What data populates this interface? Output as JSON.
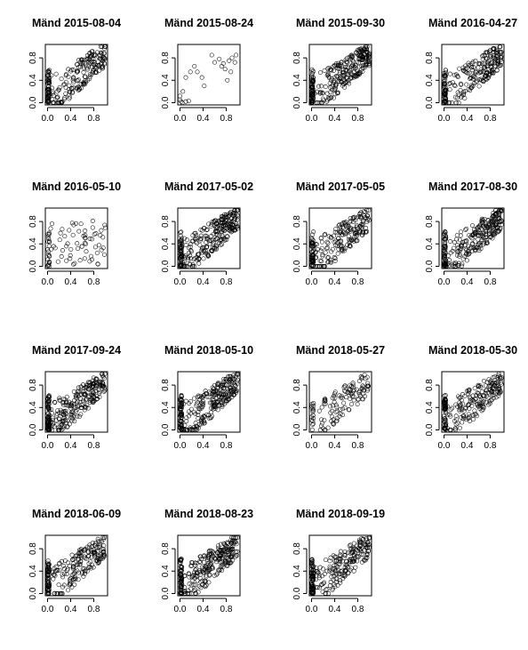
{
  "figure": {
    "ncols": 4,
    "tick_values": [
      0.0,
      0.4,
      0.8
    ],
    "tick_labels": [
      "0.0",
      "0.4",
      "0.8"
    ],
    "marker": "open-circle",
    "colors": {
      "points": "#000000",
      "axes": "#000000",
      "background": "#ffffff"
    }
  },
  "chart_data": [
    {
      "type": "scatter",
      "title": "Mänd 2015-08-04",
      "xlim": [
        0,
        1
      ],
      "ylim": [
        0,
        1
      ],
      "grid": false,
      "points": {
        "n": 240,
        "pattern": "diagonal",
        "density": "high",
        "zero_cluster": "strong",
        "gap": false
      }
    },
    {
      "type": "scatter",
      "title": "Mänd 2015-08-24",
      "xlim": [
        0,
        1
      ],
      "ylim": [
        0,
        1
      ],
      "grid": false,
      "points": [
        [
          0.0,
          0.05
        ],
        [
          0.02,
          0.02
        ],
        [
          0.04,
          0.0
        ],
        [
          0.0,
          0.12
        ],
        [
          0.05,
          0.2
        ],
        [
          0.1,
          0.02
        ],
        [
          0.15,
          0.03
        ],
        [
          0.1,
          0.45
        ],
        [
          0.18,
          0.55
        ],
        [
          0.25,
          0.65
        ],
        [
          0.3,
          0.55
        ],
        [
          0.38,
          0.45
        ],
        [
          0.42,
          0.3
        ],
        [
          0.55,
          0.85
        ],
        [
          0.6,
          0.72
        ],
        [
          0.68,
          0.78
        ],
        [
          0.72,
          0.65
        ],
        [
          0.75,
          0.7
        ],
        [
          0.78,
          0.6
        ],
        [
          0.82,
          0.4
        ],
        [
          0.85,
          0.75
        ],
        [
          0.88,
          0.55
        ],
        [
          0.9,
          0.8
        ],
        [
          0.95,
          0.72
        ],
        [
          0.97,
          0.85
        ]
      ]
    },
    {
      "type": "scatter",
      "title": "Mänd 2015-09-30",
      "xlim": [
        0,
        1
      ],
      "ylim": [
        0,
        1
      ],
      "grid": false,
      "points": {
        "n": 300,
        "pattern": "diagonal",
        "density": "high",
        "zero_cluster": "strong",
        "gap": false
      }
    },
    {
      "type": "scatter",
      "title": "Mänd 2016-04-27",
      "xlim": [
        0,
        1
      ],
      "ylim": [
        0,
        1
      ],
      "grid": false,
      "points": {
        "n": 240,
        "pattern": "diagonal",
        "density": "medium",
        "zero_cluster": "strong",
        "gap": false
      }
    },
    {
      "type": "scatter",
      "title": "Mänd 2016-05-10",
      "xlim": [
        0,
        1
      ],
      "ylim": [
        0,
        1
      ],
      "grid": false,
      "points": {
        "n": 85,
        "pattern": "scattered",
        "density": "low",
        "zero_cluster": "strong",
        "gap": false
      }
    },
    {
      "type": "scatter",
      "title": "Mänd 2017-05-02",
      "xlim": [
        0,
        1
      ],
      "ylim": [
        0,
        1
      ],
      "grid": false,
      "points": {
        "n": 300,
        "pattern": "diagonal",
        "density": "high",
        "zero_cluster": "strong",
        "gap": false
      }
    },
    {
      "type": "scatter",
      "title": "Mänd 2017-05-05",
      "xlim": [
        0,
        1
      ],
      "ylim": [
        0,
        1
      ],
      "grid": false,
      "points": {
        "n": 240,
        "pattern": "diagonal",
        "density": "medium",
        "zero_cluster": "strong",
        "gap": false
      }
    },
    {
      "type": "scatter",
      "title": "Mänd 2017-08-30",
      "xlim": [
        0,
        1
      ],
      "ylim": [
        0,
        1
      ],
      "grid": false,
      "points": {
        "n": 280,
        "pattern": "diagonal",
        "density": "high",
        "zero_cluster": "strong",
        "gap": false
      }
    },
    {
      "type": "scatter",
      "title": "Mänd 2017-09-24",
      "xlim": [
        0,
        1
      ],
      "ylim": [
        0,
        1
      ],
      "grid": false,
      "points": {
        "n": 300,
        "pattern": "diagonal",
        "density": "high",
        "zero_cluster": "strong",
        "gap": false
      }
    },
    {
      "type": "scatter",
      "title": "Mänd 2018-05-10",
      "xlim": [
        0,
        1
      ],
      "ylim": [
        0,
        1
      ],
      "grid": false,
      "points": {
        "n": 300,
        "pattern": "diagonal",
        "density": "high",
        "zero_cluster": "strong",
        "gap": false
      }
    },
    {
      "type": "scatter",
      "title": "Mänd 2018-05-27",
      "xlim": [
        0,
        1
      ],
      "ylim": [
        0,
        1
      ],
      "grid": false,
      "points": {
        "n": 130,
        "pattern": "diagonal",
        "density": "low",
        "zero_cluster": "medium",
        "gap": true
      }
    },
    {
      "type": "scatter",
      "title": "Mänd 2018-05-30",
      "xlim": [
        0,
        1
      ],
      "ylim": [
        0,
        1
      ],
      "grid": false,
      "points": {
        "n": 240,
        "pattern": "diagonal",
        "density": "medium",
        "zero_cluster": "strong",
        "gap": false
      }
    },
    {
      "type": "scatter",
      "title": "Mänd 2018-06-09",
      "xlim": [
        0,
        1
      ],
      "ylim": [
        0,
        1
      ],
      "grid": false,
      "points": {
        "n": 240,
        "pattern": "diagonal",
        "density": "medium",
        "zero_cluster": "strong",
        "gap": false
      }
    },
    {
      "type": "scatter",
      "title": "Mänd 2018-08-23",
      "xlim": [
        0,
        1
      ],
      "ylim": [
        0,
        1
      ],
      "grid": false,
      "points": {
        "n": 300,
        "pattern": "diagonal",
        "density": "high",
        "zero_cluster": "strong",
        "gap": false
      }
    },
    {
      "type": "scatter",
      "title": "Mänd 2018-09-19",
      "xlim": [
        0,
        1
      ],
      "ylim": [
        0,
        1
      ],
      "grid": false,
      "points": {
        "n": 260,
        "pattern": "diagonal",
        "density": "medium",
        "zero_cluster": "strong",
        "gap": false
      }
    }
  ]
}
